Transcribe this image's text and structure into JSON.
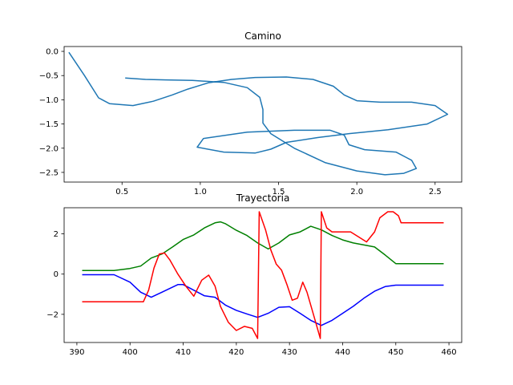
{
  "chart_data": [
    {
      "type": "line",
      "title": "Camino",
      "xlabel": "",
      "ylabel": "",
      "xlim": [
        0.13,
        2.67
      ],
      "ylim": [
        -2.7,
        0.1
      ],
      "xticks": [
        0.5,
        1.0,
        1.5,
        2.0,
        2.5
      ],
      "xtick_labels": [
        "0.5",
        "1.0",
        "1.5",
        "2.0",
        "2.5"
      ],
      "yticks": [
        0.0,
        -0.5,
        -1.0,
        -1.5,
        -2.0,
        -2.5
      ],
      "ytick_labels": [
        "0.0",
        "−0.5",
        "−1.0",
        "−1.5",
        "−2.0",
        "−2.5"
      ],
      "grid": false,
      "series": [
        {
          "color": "#1f77b4",
          "points": [
            [
              0.16,
              -0.02
            ],
            [
              0.26,
              -0.5
            ],
            [
              0.35,
              -0.96
            ],
            [
              0.42,
              -1.08
            ],
            [
              0.57,
              -1.12
            ],
            [
              0.7,
              -1.03
            ],
            [
              0.82,
              -0.9
            ],
            [
              0.92,
              -0.78
            ],
            [
              1.05,
              -0.65
            ],
            [
              1.2,
              -0.58
            ],
            [
              1.35,
              -0.54
            ],
            [
              1.55,
              -0.53
            ],
            [
              1.72,
              -0.58
            ],
            [
              1.85,
              -0.72
            ],
            [
              1.92,
              -0.9
            ],
            [
              2.0,
              -1.02
            ],
            [
              2.15,
              -1.05
            ],
            [
              2.35,
              -1.05
            ],
            [
              2.5,
              -1.12
            ],
            [
              2.58,
              -1.3
            ],
            [
              2.45,
              -1.5
            ],
            [
              2.2,
              -1.62
            ],
            [
              1.95,
              -1.7
            ],
            [
              1.75,
              -1.78
            ],
            [
              1.55,
              -1.88
            ],
            [
              1.45,
              -2.02
            ],
            [
              1.35,
              -2.1
            ],
            [
              1.15,
              -2.08
            ],
            [
              0.98,
              -1.98
            ],
            [
              1.02,
              -1.8
            ],
            [
              1.3,
              -1.67
            ],
            [
              1.6,
              -1.63
            ],
            [
              1.83,
              -1.63
            ],
            [
              1.92,
              -1.73
            ],
            [
              1.95,
              -1.93
            ],
            [
              2.05,
              -2.03
            ],
            [
              2.25,
              -2.08
            ],
            [
              2.35,
              -2.25
            ],
            [
              2.38,
              -2.42
            ],
            [
              2.3,
              -2.52
            ],
            [
              2.18,
              -2.55
            ],
            [
              2.0,
              -2.47
            ],
            [
              1.8,
              -2.3
            ],
            [
              1.6,
              -2.0
            ],
            [
              1.45,
              -1.7
            ],
            [
              1.4,
              -1.48
            ],
            [
              1.4,
              -1.2
            ],
            [
              1.38,
              -0.95
            ],
            [
              1.3,
              -0.75
            ],
            [
              1.15,
              -0.64
            ],
            [
              0.95,
              -0.6
            ],
            [
              0.78,
              -0.59
            ],
            [
              0.65,
              -0.58
            ],
            [
              0.52,
              -0.55
            ]
          ]
        }
      ]
    },
    {
      "type": "line",
      "title": "Trayectoria",
      "xlabel": "",
      "ylabel": "",
      "xlim": [
        387.6,
        462.4
      ],
      "ylim": [
        -3.4,
        3.3
      ],
      "xticks": [
        390,
        400,
        410,
        420,
        430,
        440,
        450,
        460
      ],
      "xtick_labels": [
        "390",
        "400",
        "410",
        "420",
        "430",
        "440",
        "450",
        "460"
      ],
      "yticks": [
        2,
        0,
        -2
      ],
      "ytick_labels": [
        "2",
        "0",
        "−2"
      ],
      "grid": false,
      "series": [
        {
          "color": "#0000ff",
          "points": [
            [
              391,
              -0.03
            ],
            [
              397,
              -0.03
            ],
            [
              400,
              -0.4
            ],
            [
              402,
              -0.9
            ],
            [
              404,
              -1.15
            ],
            [
              406,
              -0.9
            ],
            [
              409,
              -0.52
            ],
            [
              410,
              -0.52
            ],
            [
              412,
              -0.8
            ],
            [
              414,
              -1.08
            ],
            [
              416,
              -1.15
            ],
            [
              418,
              -1.55
            ],
            [
              420,
              -1.8
            ],
            [
              422,
              -1.98
            ],
            [
              424,
              -2.15
            ],
            [
              426,
              -1.95
            ],
            [
              428,
              -1.65
            ],
            [
              430,
              -1.62
            ],
            [
              432,
              -1.95
            ],
            [
              434,
              -2.3
            ],
            [
              436,
              -2.55
            ],
            [
              438,
              -2.3
            ],
            [
              440,
              -1.95
            ],
            [
              442,
              -1.6
            ],
            [
              444,
              -1.2
            ],
            [
              446,
              -0.85
            ],
            [
              448,
              -0.62
            ],
            [
              450,
              -0.55
            ],
            [
              459,
              -0.55
            ]
          ]
        },
        {
          "color": "#008000",
          "points": [
            [
              391,
              0.18
            ],
            [
              397,
              0.18
            ],
            [
              400,
              0.28
            ],
            [
              402,
              0.4
            ],
            [
              404,
              0.8
            ],
            [
              406,
              1.0
            ],
            [
              408,
              1.35
            ],
            [
              410,
              1.72
            ],
            [
              412,
              1.95
            ],
            [
              414,
              2.3
            ],
            [
              416,
              2.55
            ],
            [
              417,
              2.6
            ],
            [
              418,
              2.5
            ],
            [
              420,
              2.18
            ],
            [
              422,
              1.92
            ],
            [
              424,
              1.55
            ],
            [
              426,
              1.25
            ],
            [
              428,
              1.55
            ],
            [
              430,
              1.95
            ],
            [
              432,
              2.1
            ],
            [
              434,
              2.38
            ],
            [
              436,
              2.2
            ],
            [
              438,
              1.92
            ],
            [
              440,
              1.7
            ],
            [
              442,
              1.55
            ],
            [
              444,
              1.45
            ],
            [
              446,
              1.35
            ],
            [
              448,
              0.95
            ],
            [
              450,
              0.52
            ],
            [
              459,
              0.52
            ]
          ]
        },
        {
          "color": "#ff0000",
          "points": [
            [
              391,
              -1.38
            ],
            [
              397,
              -1.38
            ],
            [
              402.5,
              -1.38
            ],
            [
              403.5,
              -0.8
            ],
            [
              404.5,
              0.3
            ],
            [
              405.5,
              1.0
            ],
            [
              406.5,
              1.05
            ],
            [
              407.5,
              0.7
            ],
            [
              409,
              0.0
            ],
            [
              410.5,
              -0.6
            ],
            [
              412,
              -1.1
            ],
            [
              413.5,
              -0.3
            ],
            [
              414.8,
              -0.05
            ],
            [
              416,
              -0.6
            ],
            [
              417,
              -1.6
            ],
            [
              418.5,
              -2.4
            ],
            [
              420,
              -2.8
            ],
            [
              421.5,
              -2.6
            ],
            [
              423,
              -2.7
            ],
            [
              424,
              -3.2
            ],
            [
              424.3,
              3.1
            ],
            [
              425.5,
              2.2
            ],
            [
              426.5,
              1.2
            ],
            [
              427.5,
              0.5
            ],
            [
              428.5,
              0.2
            ],
            [
              429.5,
              -0.5
            ],
            [
              430.5,
              -1.3
            ],
            [
              431.5,
              -1.2
            ],
            [
              432.5,
              -0.4
            ],
            [
              433.3,
              -0.9
            ],
            [
              434.5,
              -2.0
            ],
            [
              435.8,
              -3.2
            ],
            [
              436.0,
              3.1
            ],
            [
              437,
              2.3
            ],
            [
              438,
              2.1
            ],
            [
              441.5,
              2.1
            ],
            [
              443,
              1.85
            ],
            [
              444.5,
              1.6
            ],
            [
              446,
              2.1
            ],
            [
              447,
              2.8
            ],
            [
              448.5,
              3.1
            ],
            [
              449.5,
              3.1
            ],
            [
              450.5,
              2.9
            ],
            [
              451,
              2.55
            ],
            [
              459,
              2.55
            ]
          ]
        }
      ]
    }
  ]
}
